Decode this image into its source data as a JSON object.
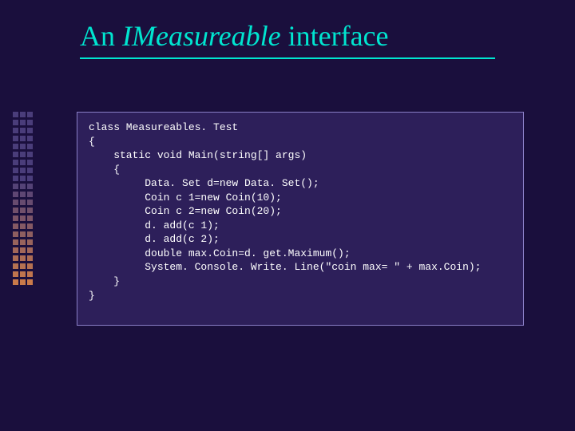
{
  "colors": {
    "slide_bg": "#1a0f3d",
    "accent": "#00e5d0",
    "code_bg": "#2d1f5a",
    "code_border": "#8a7fc7",
    "code_text": "#ffffff",
    "deco_dark": "#4a3d7a",
    "deco_light": "#c97a4a"
  },
  "title": {
    "prefix": "An ",
    "italic": "IMeasureable",
    "suffix": " interface",
    "fontsize": 36
  },
  "decorator": {
    "rows": 22,
    "cols": 3,
    "gradient_start_row": 8
  },
  "code": {
    "fontsize": 13,
    "font_family": "Consolas, Courier New, monospace",
    "text": "class Measureables. Test\n{\n    static void Main(string[] args)\n    {\n         Data. Set d=new Data. Set();\n         Coin c 1=new Coin(10);\n         Coin c 2=new Coin(20);\n         d. add(c 1);\n         d. add(c 2);\n         double max.Coin=d. get.Maximum();\n         System. Console. Write. Line(\"coin max= \" + max.Coin);\n    }\n}"
  }
}
